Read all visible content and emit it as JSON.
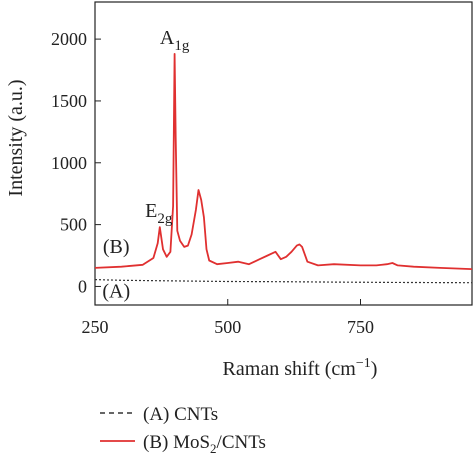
{
  "chart_data": {
    "type": "line",
    "xlabel": "Raman shift (cm",
    "xlabel_sup": "−1",
    "xlabel_close": ")",
    "ylabel": "Intensity (a.u.)",
    "xlim": [
      250,
      960
    ],
    "ylim": [
      -150,
      2300
    ],
    "xticks": [
      250,
      500,
      750
    ],
    "yticks": [
      0,
      500,
      1000,
      1500,
      2000
    ],
    "grid": false,
    "legend_position": "bottom-left, below plot",
    "series": [
      {
        "name": "(A) CNTs",
        "color": "#333333",
        "style": "dashed",
        "x": [
          250,
          300,
          400,
          500,
          600,
          700,
          800,
          900,
          960
        ],
        "y": [
          55,
          50,
          45,
          40,
          38,
          35,
          33,
          31,
          30
        ]
      },
      {
        "name": "(B) MoS2/CNTs",
        "color": "#e03030",
        "style": "solid",
        "x": [
          250,
          300,
          340,
          360,
          368,
          372,
          378,
          385,
          392,
          397,
          400,
          402,
          405,
          410,
          418,
          425,
          432,
          440,
          445,
          450,
          455,
          460,
          465,
          480,
          500,
          520,
          540,
          560,
          575,
          590,
          600,
          610,
          620,
          630,
          635,
          640,
          650,
          670,
          700,
          750,
          780,
          800,
          810,
          820,
          850,
          900,
          960
        ],
        "y": [
          150,
          160,
          175,
          230,
          350,
          480,
          300,
          240,
          280,
          650,
          1880,
          1200,
          450,
          370,
          320,
          330,
          420,
          620,
          780,
          700,
          560,
          300,
          210,
          180,
          190,
          200,
          180,
          220,
          250,
          280,
          220,
          240,
          280,
          330,
          340,
          320,
          200,
          170,
          180,
          170,
          170,
          180,
          190,
          170,
          160,
          150,
          140
        ]
      }
    ],
    "annotations": [
      {
        "text": "A",
        "sub": "1g",
        "x": 400,
        "y": 1960
      },
      {
        "text": "E",
        "sub": "2g",
        "x": 370,
        "y": 560
      },
      {
        "text": "(B)",
        "x": 290,
        "y": 270
      },
      {
        "text": "(A)",
        "x": 290,
        "y": -90
      }
    ]
  },
  "legend": [
    {
      "label": "(A) CNTs",
      "prefix": "(B) MoS",
      "sub": ""
    },
    {
      "label": "(B) MoS",
      "sub": "2",
      "suffix": "/CNTs"
    }
  ]
}
